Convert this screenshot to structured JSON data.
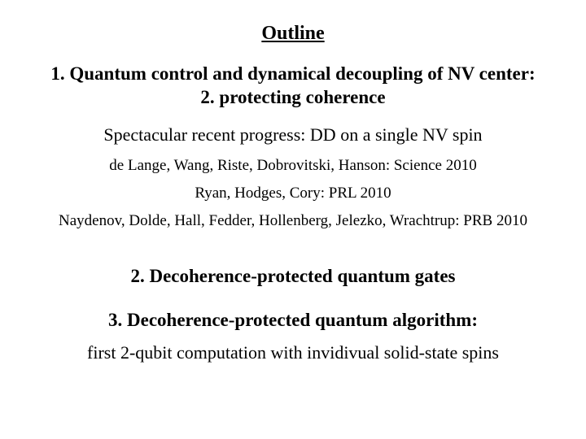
{
  "title": "Outline",
  "section1": {
    "line1": "1. Quantum control and dynamical decoupling of NV center:",
    "line2": "2. protecting coherence"
  },
  "subheading": "Spectacular recent progress: DD on a single NV spin",
  "refs": [
    "de Lange, Wang, Riste, Dobrovitski, Hanson: Science 2010",
    "Ryan, Hodges, Cory: PRL 2010",
    "Naydenov, Dolde, Hall, Fedder, Hollenberg, Jelezko, Wrachtrup: PRB 2010"
  ],
  "section2": "2. Decoherence-protected quantum gates",
  "section3": {
    "heading": "3. Decoherence-protected quantum algorithm:",
    "sub": "first 2-qubit computation with invidivual solid-state spins"
  },
  "style": {
    "background_color": "#ffffff",
    "text_color": "#000000",
    "font_family": "Times New Roman",
    "title_fontsize_pt": 18,
    "heading_fontsize_pt": 17,
    "body_fontsize_pt": 16,
    "ref_fontsize_pt": 14
  }
}
